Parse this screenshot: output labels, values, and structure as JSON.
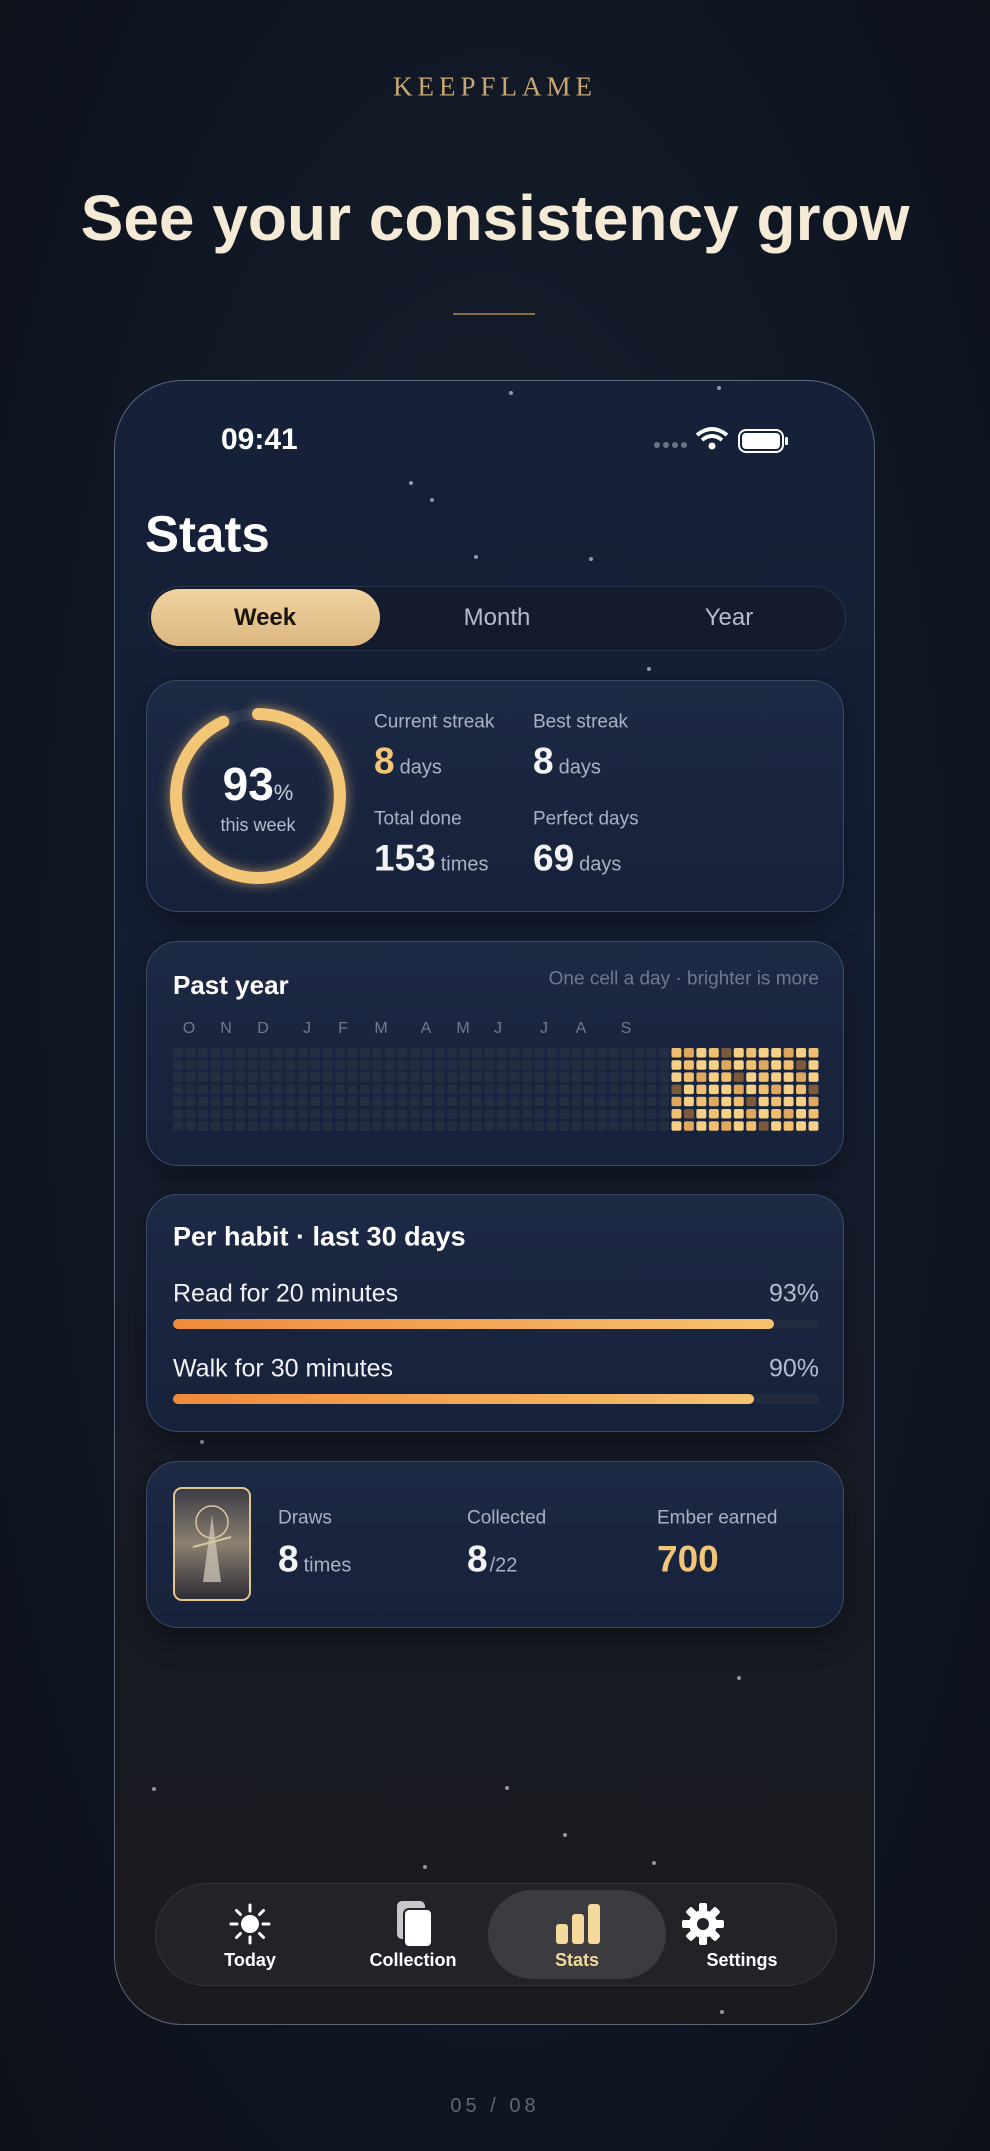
{
  "brand": "KEEPFLAME",
  "headline": "See your consistency grow",
  "status": {
    "time": "09:41"
  },
  "screen_title": "Stats",
  "segments": [
    "Week",
    "Month",
    "Year"
  ],
  "summary": {
    "ring_value": 93,
    "ring_unit": "%",
    "ring_caption": "this week",
    "stats": [
      {
        "label": "Current streak",
        "value": 8,
        "unit": "days"
      },
      {
        "label": "Best streak",
        "value": 8,
        "unit": "days"
      },
      {
        "label": "Total done",
        "value": 153,
        "unit": "times"
      },
      {
        "label": "Perfect days",
        "value": 69,
        "unit": "days"
      }
    ]
  },
  "past_year": {
    "title": "Past year",
    "note": "One cell a day · brighter is more",
    "months": [
      "O",
      "N",
      "D",
      "J",
      "F",
      "M",
      "A",
      "M",
      "J",
      "J",
      "A",
      "S"
    ]
  },
  "per_habit": {
    "title": "Per habit · last 30 days",
    "habits": [
      {
        "name": "Read for 20 minutes",
        "value": 93,
        "value_label": "93%"
      },
      {
        "name": "Walk for 30 minutes",
        "value": 90,
        "value_label": "90%"
      }
    ]
  },
  "rewards": {
    "items": [
      {
        "label": "Draws",
        "value": 8,
        "unit": "times"
      },
      {
        "label": "Collected",
        "value": 8,
        "unit": "/22"
      },
      {
        "label": "Ember earned",
        "value": 700
      }
    ]
  },
  "nav": [
    "Today",
    "Collection",
    "Stats",
    "Settings"
  ],
  "page_indicator": "05 / 08"
}
